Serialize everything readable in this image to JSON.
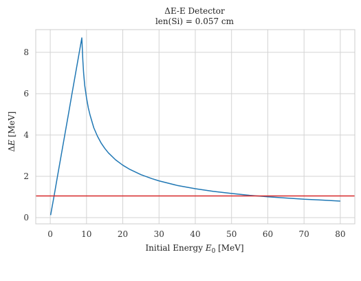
{
  "chart_data": {
    "type": "line",
    "title": "ΔE-E Detector",
    "subtitle": "len(Si) = 0.057 cm",
    "xlabel": "Initial Energy E₀ [MeV]",
    "xlabel_text": "Initial Energy ",
    "xlabel_var": "E",
    "xlabel_sub": "0",
    "xlabel_unit": " [MeV]",
    "ylabel": "ΔE  [MeV]",
    "ylabel_prefix": "Δ",
    "ylabel_var": "E",
    "ylabel_unit": "  [MeV]",
    "xlim": [
      -4,
      84
    ],
    "ylim": [
      -0.3,
      9.1
    ],
    "xticks": [
      0,
      10,
      20,
      30,
      40,
      50,
      60,
      70,
      80
    ],
    "xtick_labels": [
      "0",
      "10",
      "20",
      "30",
      "40",
      "50",
      "60",
      "70",
      "80"
    ],
    "yticks": [
      0,
      2,
      4,
      6,
      8
    ],
    "ytick_labels": [
      "0",
      "2",
      "4",
      "6",
      "8"
    ],
    "grid": true,
    "series": [
      {
        "color": "#1f77b4",
        "x": [
          0.1,
          1,
          2,
          3,
          4,
          5,
          6,
          7,
          8,
          8.7,
          9,
          9.2,
          9.5,
          10,
          10.5,
          11,
          12,
          13,
          14,
          15,
          16,
          18,
          20,
          22,
          25,
          28,
          30,
          35,
          40,
          45,
          50,
          55,
          60,
          65,
          70,
          75,
          80
        ],
        "y": [
          0.12,
          1.0,
          2.0,
          3.0,
          4.0,
          5.0,
          6.0,
          7.0,
          8.0,
          8.7,
          7.6,
          7.0,
          6.4,
          5.8,
          5.3,
          4.95,
          4.35,
          3.95,
          3.62,
          3.36,
          3.14,
          2.8,
          2.54,
          2.33,
          2.08,
          1.89,
          1.78,
          1.56,
          1.4,
          1.27,
          1.17,
          1.08,
          1.01,
          0.95,
          0.89,
          0.85,
          0.8
        ]
      },
      {
        "color": "#d62728",
        "x": [
          -4,
          84
        ],
        "y": [
          1.05,
          1.05
        ]
      }
    ]
  }
}
